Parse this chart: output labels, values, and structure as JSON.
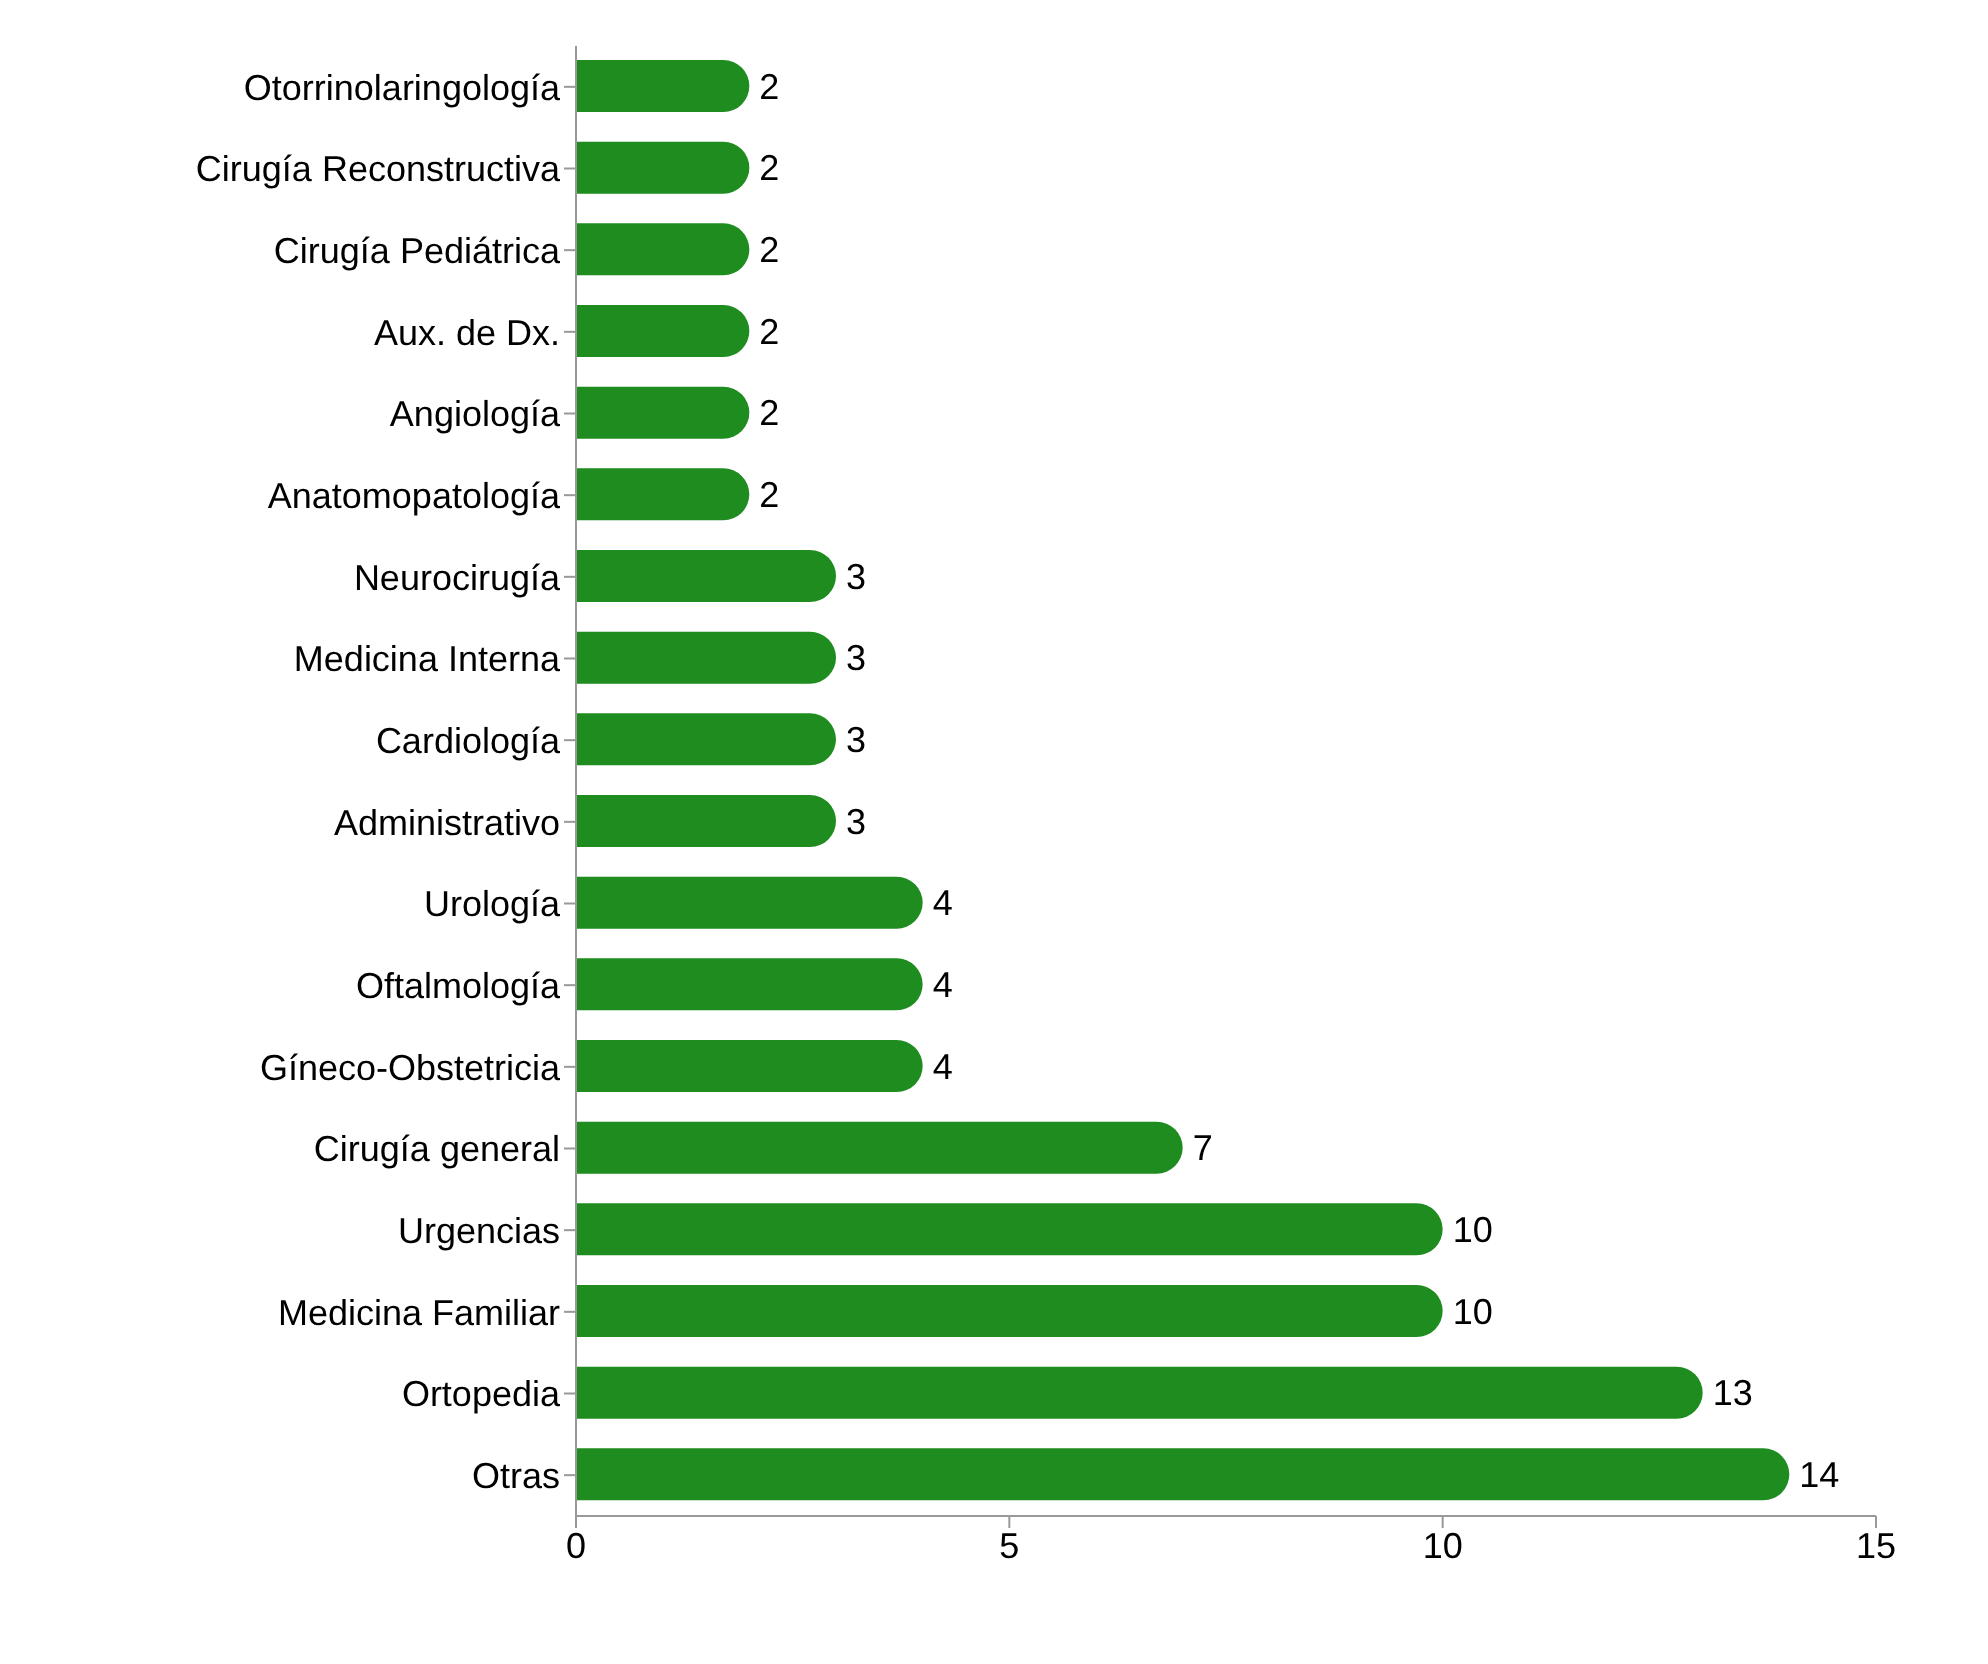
{
  "chart_data": {
    "type": "bar",
    "orientation": "horizontal",
    "categories": [
      "Otorrinolaringología",
      "Cirugía Reconstructiva",
      "Cirugía Pediátrica",
      "Aux. de Dx.",
      "Angiología",
      "Anatomopatología",
      "Neurocirugía",
      "Medicina Interna",
      "Cardiología",
      "Administrativo",
      "Urología",
      "Oftalmología",
      "Gíneco-Obstetricia",
      "Cirugía general",
      "Urgencias",
      "Medicina Familiar",
      "Ortopedia",
      "Otras"
    ],
    "values": [
      2,
      2,
      2,
      2,
      2,
      2,
      3,
      3,
      3,
      3,
      4,
      4,
      4,
      7,
      10,
      10,
      13,
      14
    ],
    "color": "#1e8c1e",
    "xlim": [
      0,
      15
    ],
    "xticks": [
      0,
      5,
      10,
      15
    ],
    "grid": false,
    "data_labels": true
  }
}
